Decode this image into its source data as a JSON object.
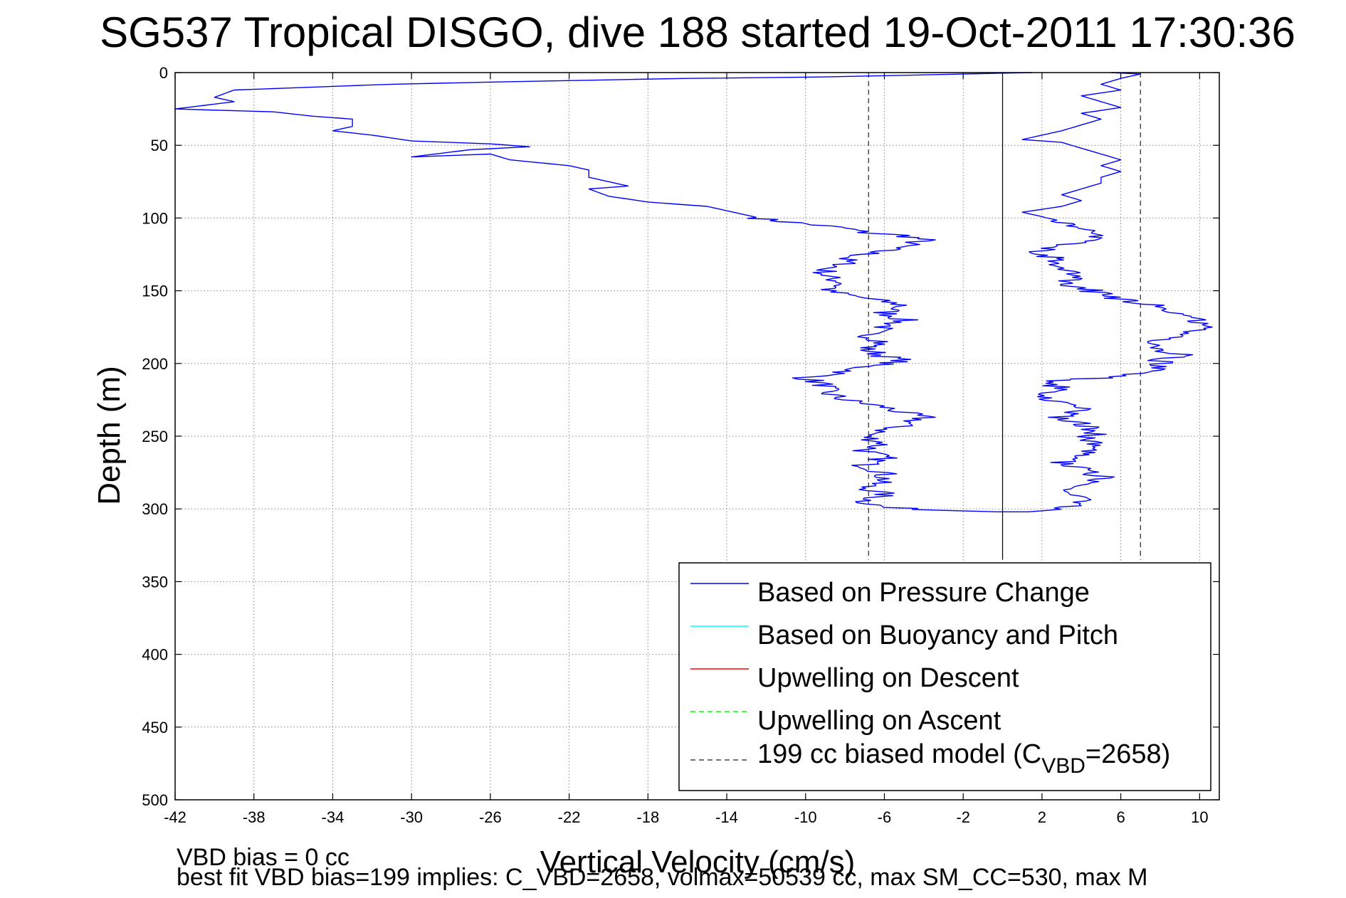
{
  "chart_data": {
    "type": "line",
    "title": "SG537 Tropical DISGO, dive 188 started 19-Oct-2011 17:30:36",
    "xlabel": "Vertical Velocity (cm/s)",
    "ylabel": "Depth (m)",
    "xlim": [
      -42,
      11
    ],
    "ylim": [
      0,
      500
    ],
    "y_reversed": true,
    "grid": true,
    "xticks": [
      -42,
      -38,
      -34,
      -30,
      -26,
      -22,
      -18,
      -14,
      -10,
      -6,
      -2,
      2,
      6,
      10
    ],
    "yticks": [
      0,
      50,
      100,
      150,
      200,
      250,
      300,
      350,
      400,
      450,
      500
    ],
    "zero_line_x": 0,
    "legend": {
      "placement": "bottom-right",
      "entries": [
        {
          "label": "Based on Pressure Change",
          "color": "#0000ff",
          "style": "solid"
        },
        {
          "label": "Based on Buoyancy and Pitch",
          "color": "#00ffff",
          "style": "solid"
        },
        {
          "label": "Upwelling on Descent",
          "color": "#ff0000",
          "style": "solid"
        },
        {
          "label": "Upwelling on Ascent",
          "color": "#00ff00",
          "style": "dashed"
        },
        {
          "label_main": "199 cc biased model (C",
          "label_sub": "VBD",
          "label_tail": "=2658)",
          "color": "#444444",
          "style": "dashed"
        }
      ]
    },
    "series": [
      {
        "name": "Based on Pressure Change",
        "color": "#0000ff",
        "points": [
          [
            1.5,
            0
          ],
          [
            -9,
            3
          ],
          [
            -16,
            4
          ],
          [
            -24,
            6
          ],
          [
            -31,
            8
          ],
          [
            -35,
            10
          ],
          [
            -39,
            12
          ],
          [
            -40,
            17
          ],
          [
            -39,
            20
          ],
          [
            -42,
            25
          ],
          [
            -37,
            27
          ],
          [
            -35,
            30
          ],
          [
            -33,
            32
          ],
          [
            -33,
            37
          ],
          [
            -34,
            40
          ],
          [
            -32,
            43
          ],
          [
            -30,
            47
          ],
          [
            -26,
            49
          ],
          [
            -24,
            51
          ],
          [
            -27,
            53
          ],
          [
            -30,
            58
          ],
          [
            -26,
            56
          ],
          [
            -25,
            60
          ],
          [
            -22,
            64
          ],
          [
            -21,
            67
          ],
          [
            -21,
            72
          ],
          [
            -20,
            75
          ],
          [
            -19,
            78
          ],
          [
            -21,
            80
          ],
          [
            -20,
            85
          ],
          [
            -18,
            89
          ],
          [
            -15,
            92
          ],
          [
            -14,
            95
          ],
          [
            -13,
            98
          ],
          [
            -12,
            101
          ],
          [
            -10,
            104
          ],
          [
            -8,
            107
          ],
          [
            -7,
            110
          ],
          [
            -5,
            112
          ],
          [
            -4,
            115
          ],
          [
            -5,
            119
          ],
          [
            -6,
            122
          ],
          [
            -7,
            125
          ],
          [
            -8,
            128
          ],
          [
            -8,
            132
          ],
          [
            -9,
            135
          ],
          [
            -9,
            140
          ],
          [
            -8,
            145
          ],
          [
            -9,
            150
          ],
          [
            -7,
            155
          ],
          [
            -5,
            160
          ],
          [
            -6,
            165
          ],
          [
            -5,
            170
          ],
          [
            -6,
            175
          ],
          [
            -7,
            180
          ],
          [
            -6,
            185
          ],
          [
            -7,
            190
          ],
          [
            -6,
            195
          ],
          [
            -5,
            198
          ],
          [
            -7,
            202
          ],
          [
            -8,
            206
          ],
          [
            -10,
            210
          ],
          [
            -9,
            215
          ],
          [
            -9,
            220
          ],
          [
            -8,
            225
          ],
          [
            -6,
            230
          ],
          [
            -5,
            234
          ],
          [
            -4,
            237
          ],
          [
            -5,
            242
          ],
          [
            -6,
            246
          ],
          [
            -7,
            250
          ],
          [
            -6,
            255
          ],
          [
            -7,
            260
          ],
          [
            -6,
            265
          ],
          [
            -7,
            270
          ],
          [
            -6,
            275
          ],
          [
            -6,
            280
          ],
          [
            -7,
            285
          ],
          [
            -6,
            290
          ],
          [
            -7,
            295
          ],
          [
            -6,
            299
          ],
          [
            -3,
            301
          ],
          [
            0,
            302
          ],
          [
            2,
            302
          ],
          [
            3,
            301
          ],
          [
            3.5,
            297
          ],
          [
            4,
            292
          ],
          [
            3,
            287
          ],
          [
            4,
            282
          ],
          [
            5,
            278
          ],
          [
            4,
            273
          ],
          [
            3,
            268
          ],
          [
            4,
            262
          ],
          [
            5,
            257
          ],
          [
            4,
            252
          ],
          [
            5,
            247
          ],
          [
            4,
            242
          ],
          [
            3,
            237
          ],
          [
            4,
            232
          ],
          [
            3,
            227
          ],
          [
            2,
            222
          ],
          [
            3,
            217
          ],
          [
            2,
            212
          ],
          [
            5,
            210
          ],
          [
            7,
            206
          ],
          [
            8,
            203
          ],
          [
            8,
            198
          ],
          [
            9,
            194
          ],
          [
            8,
            190
          ],
          [
            8,
            185
          ],
          [
            9,
            180
          ],
          [
            10,
            175
          ],
          [
            10,
            170
          ],
          [
            9,
            165
          ],
          [
            8,
            160
          ],
          [
            6,
            156
          ],
          [
            5,
            152
          ],
          [
            4,
            148
          ],
          [
            3,
            144
          ],
          [
            4,
            140
          ],
          [
            3,
            136
          ],
          [
            2,
            132
          ],
          [
            3,
            128
          ],
          [
            1,
            124
          ],
          [
            3,
            120
          ],
          [
            4,
            116
          ],
          [
            5,
            112
          ],
          [
            4,
            107
          ],
          [
            3,
            103
          ],
          [
            2,
            99
          ],
          [
            1,
            96
          ],
          [
            3,
            92
          ],
          [
            4,
            88
          ],
          [
            3,
            84
          ],
          [
            4,
            80
          ],
          [
            5,
            76
          ],
          [
            5,
            72
          ],
          [
            6,
            68
          ],
          [
            5,
            64
          ],
          [
            6,
            60
          ],
          [
            5,
            56
          ],
          [
            4,
            52
          ],
          [
            3,
            48
          ],
          [
            1,
            46
          ],
          [
            2,
            43
          ],
          [
            3,
            40
          ],
          [
            4,
            36
          ],
          [
            5,
            32
          ],
          [
            4,
            28
          ],
          [
            6,
            24
          ],
          [
            5,
            20
          ],
          [
            4,
            16
          ],
          [
            6,
            12
          ],
          [
            5,
            8
          ],
          [
            6,
            4
          ],
          [
            7,
            1
          ],
          [
            5.5,
            0
          ]
        ]
      },
      {
        "name": "199 cc biased model (C_VBD=2658)",
        "color": "#444444",
        "style": "dashed",
        "points_left": [
          [
            -6.8,
            0
          ],
          [
            -6.8,
            335
          ]
        ],
        "points_right": [
          [
            7.0,
            0
          ],
          [
            7.0,
            335
          ]
        ]
      }
    ]
  },
  "footer": {
    "line1": "VBD bias = 0 cc",
    "line2": "best fit VBD bias=199 implies: C_VBD=2658, volmax=50539 cc, max SM_CC=530, max M"
  }
}
